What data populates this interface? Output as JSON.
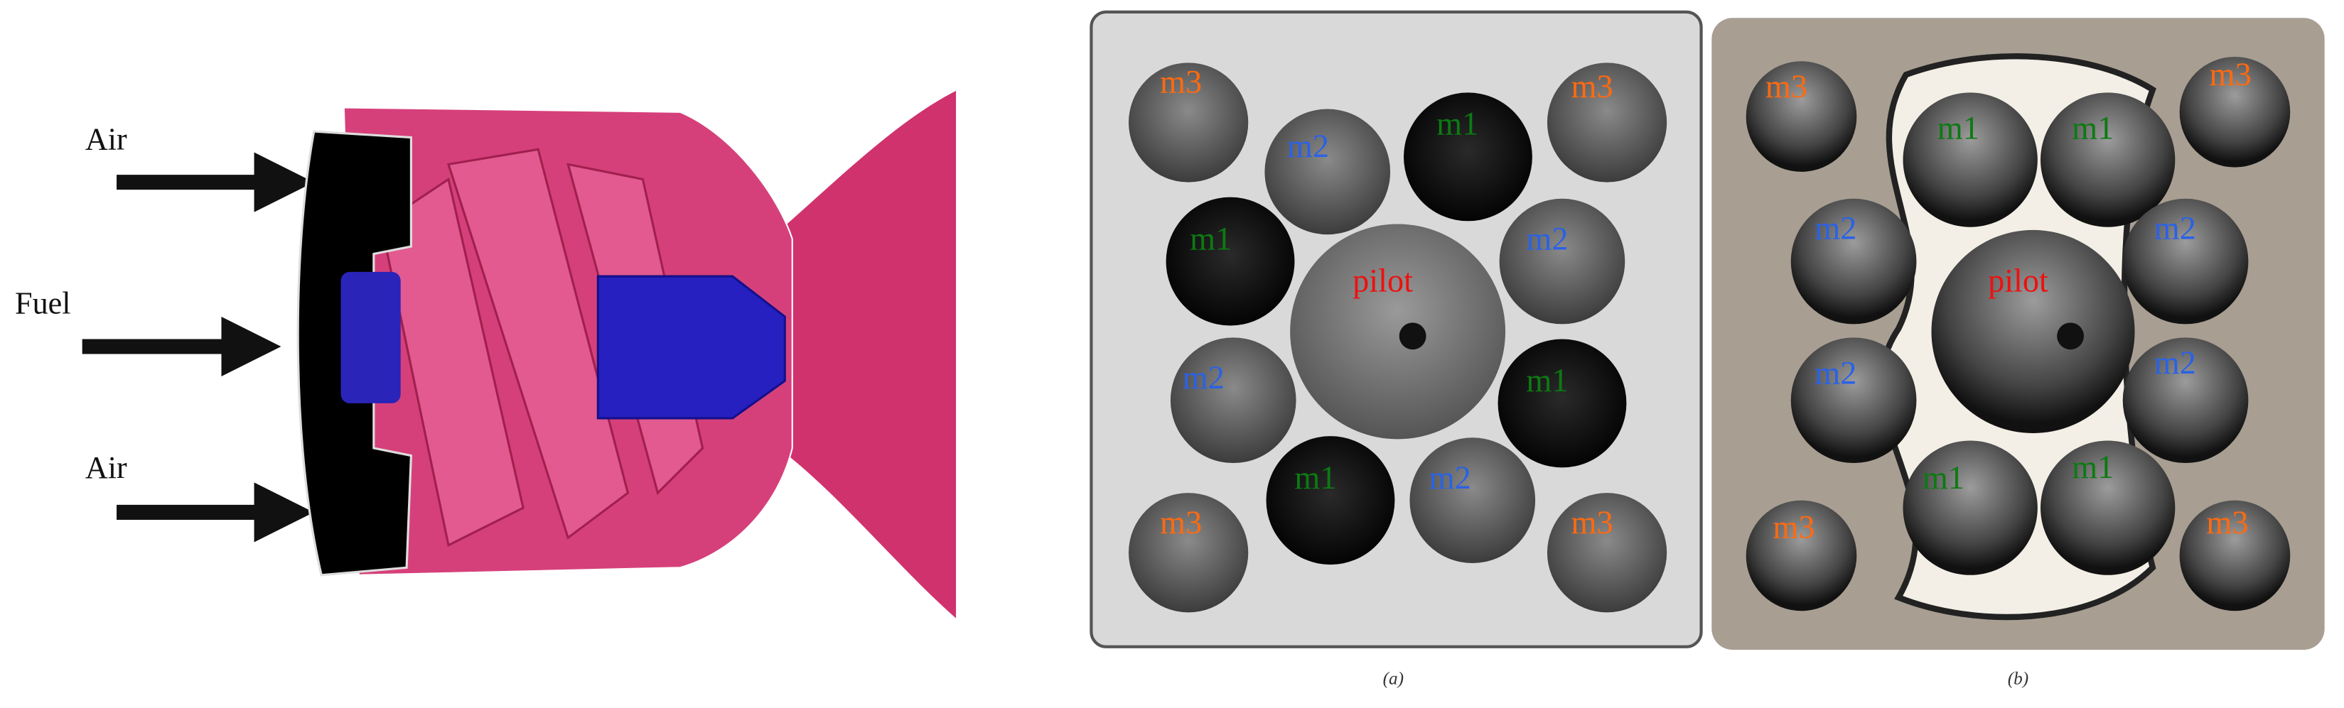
{
  "injector": {
    "labels": [
      "Air",
      "Fuel",
      "Air"
    ]
  },
  "panel_a": {
    "caption": "(a)",
    "labels": [
      "m3",
      "m3",
      "m2",
      "m1",
      "m1",
      "m2",
      "pilot",
      "m2",
      "m1",
      "m1",
      "m2",
      "m3",
      "m3"
    ]
  },
  "panel_b": {
    "caption": "(b)",
    "labels": [
      "m3",
      "m3",
      "m1",
      "m1",
      "m2",
      "m2",
      "pilot",
      "m2",
      "m2",
      "m1",
      "m1",
      "m3",
      "m3"
    ]
  }
}
